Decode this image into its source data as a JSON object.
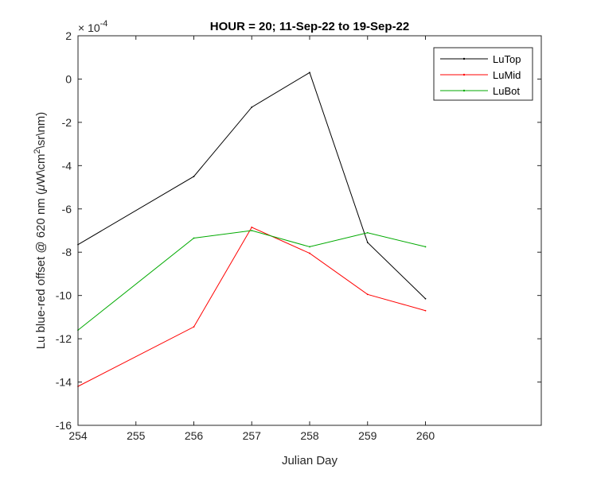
{
  "chart_data": {
    "type": "line",
    "title": "HOUR = 20; 11-Sep-22 to 19-Sep-22",
    "xlabel": "Julian Day",
    "ylabel_main": "Lu blue-red offset @ 620 nm (",
    "ylabel_mu": "μ",
    "ylabel_mid": "W\\cm",
    "ylabel_sup": "2",
    "ylabel_end": "\\sr\\nm)",
    "exponent_base": "× 10",
    "exponent_power": "-4",
    "xlim": [
      254,
      262
    ],
    "ylim": [
      -16,
      2
    ],
    "xticks": [
      "254",
      "255",
      "256",
      "257",
      "258",
      "259",
      "260"
    ],
    "yticks": [
      "-16",
      "-14",
      "-12",
      "-10",
      "-8",
      "-6",
      "-4",
      "-2",
      "0",
      "2"
    ],
    "grid": false,
    "legend_position": "top-right",
    "series": [
      {
        "name": "LuTop",
        "color": "#000000",
        "x": [
          254,
          256,
          257,
          258,
          259,
          260
        ],
        "y": [
          -7.65,
          -4.5,
          -1.3,
          0.3,
          -7.55,
          -10.15
        ]
      },
      {
        "name": "LuMid",
        "color": "#ff0000",
        "x": [
          254,
          256,
          257,
          258,
          259,
          260
        ],
        "y": [
          -14.2,
          -11.45,
          -6.85,
          -8.05,
          -9.95,
          -10.7
        ]
      },
      {
        "name": "LuBot",
        "color": "#00aa00",
        "x": [
          254,
          256,
          257,
          258,
          259,
          260
        ],
        "y": [
          -11.6,
          -7.35,
          -7.0,
          -7.75,
          -7.1,
          -7.75
        ]
      }
    ]
  }
}
